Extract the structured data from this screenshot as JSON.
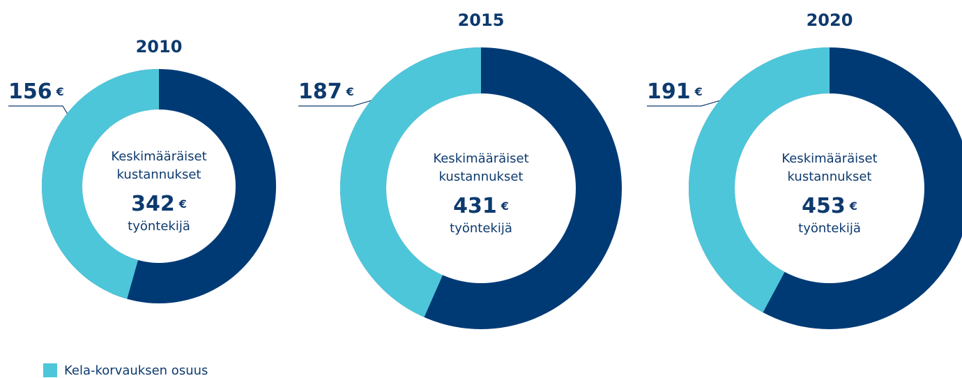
{
  "chart_data": [
    {
      "type": "donut",
      "title": "2010",
      "center_lines": [
        "Keskimääräiset",
        "kustannukset"
      ],
      "total": 342,
      "unit": "€",
      "center_sub": "työntekijä",
      "kela_value": 156,
      "kela_color": "#4ec6d9",
      "total_color": "#003a75"
    },
    {
      "type": "donut",
      "title": "2015",
      "center_lines": [
        "Keskimääräiset",
        "kustannukset"
      ],
      "total": 431,
      "unit": "€",
      "center_sub": "työntekijä",
      "kela_value": 187,
      "kela_color": "#4ec6d9",
      "total_color": "#003a75"
    },
    {
      "type": "donut",
      "title": "2020",
      "center_lines": [
        "Keskimääräiset",
        "kustannukset"
      ],
      "total": 453,
      "unit": "€",
      "center_sub": "työntekijä",
      "kela_value": 191,
      "kela_color": "#4ec6d9",
      "total_color": "#003a75"
    }
  ],
  "legend": [
    {
      "name": "Kela-korvauksen osuus",
      "color": "#4ec6d9"
    }
  ]
}
